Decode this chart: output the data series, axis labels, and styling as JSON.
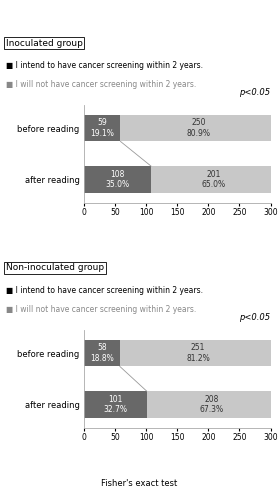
{
  "groups": [
    {
      "title": "Inoculated group",
      "rows": [
        "before reading",
        "after reading"
      ],
      "dark_values": [
        59,
        108
      ],
      "light_values": [
        250,
        201
      ],
      "dark_pcts": [
        "19.1%",
        "35.0%"
      ],
      "light_pcts": [
        "80.9%",
        "65.0%"
      ],
      "pvalue": "p<0.05"
    },
    {
      "title": "Non-inoculated group",
      "rows": [
        "before reading",
        "after reading"
      ],
      "dark_values": [
        58,
        101
      ],
      "light_values": [
        251,
        208
      ],
      "dark_pcts": [
        "18.8%",
        "32.7%"
      ],
      "light_pcts": [
        "81.2%",
        "67.3%"
      ],
      "pvalue": "p<0.05"
    }
  ],
  "legend_dark_label": "I intend to have cancer screening within 2 years.",
  "legend_light_label": "I will not have cancer screening within 2 years.",
  "footer": "Fisher's exact test",
  "dark_color": "#686868",
  "light_color": "#c8c8c8",
  "xlim": 300,
  "xticks": [
    0,
    50,
    100,
    150,
    200,
    250,
    300
  ],
  "background_color": "#ffffff"
}
